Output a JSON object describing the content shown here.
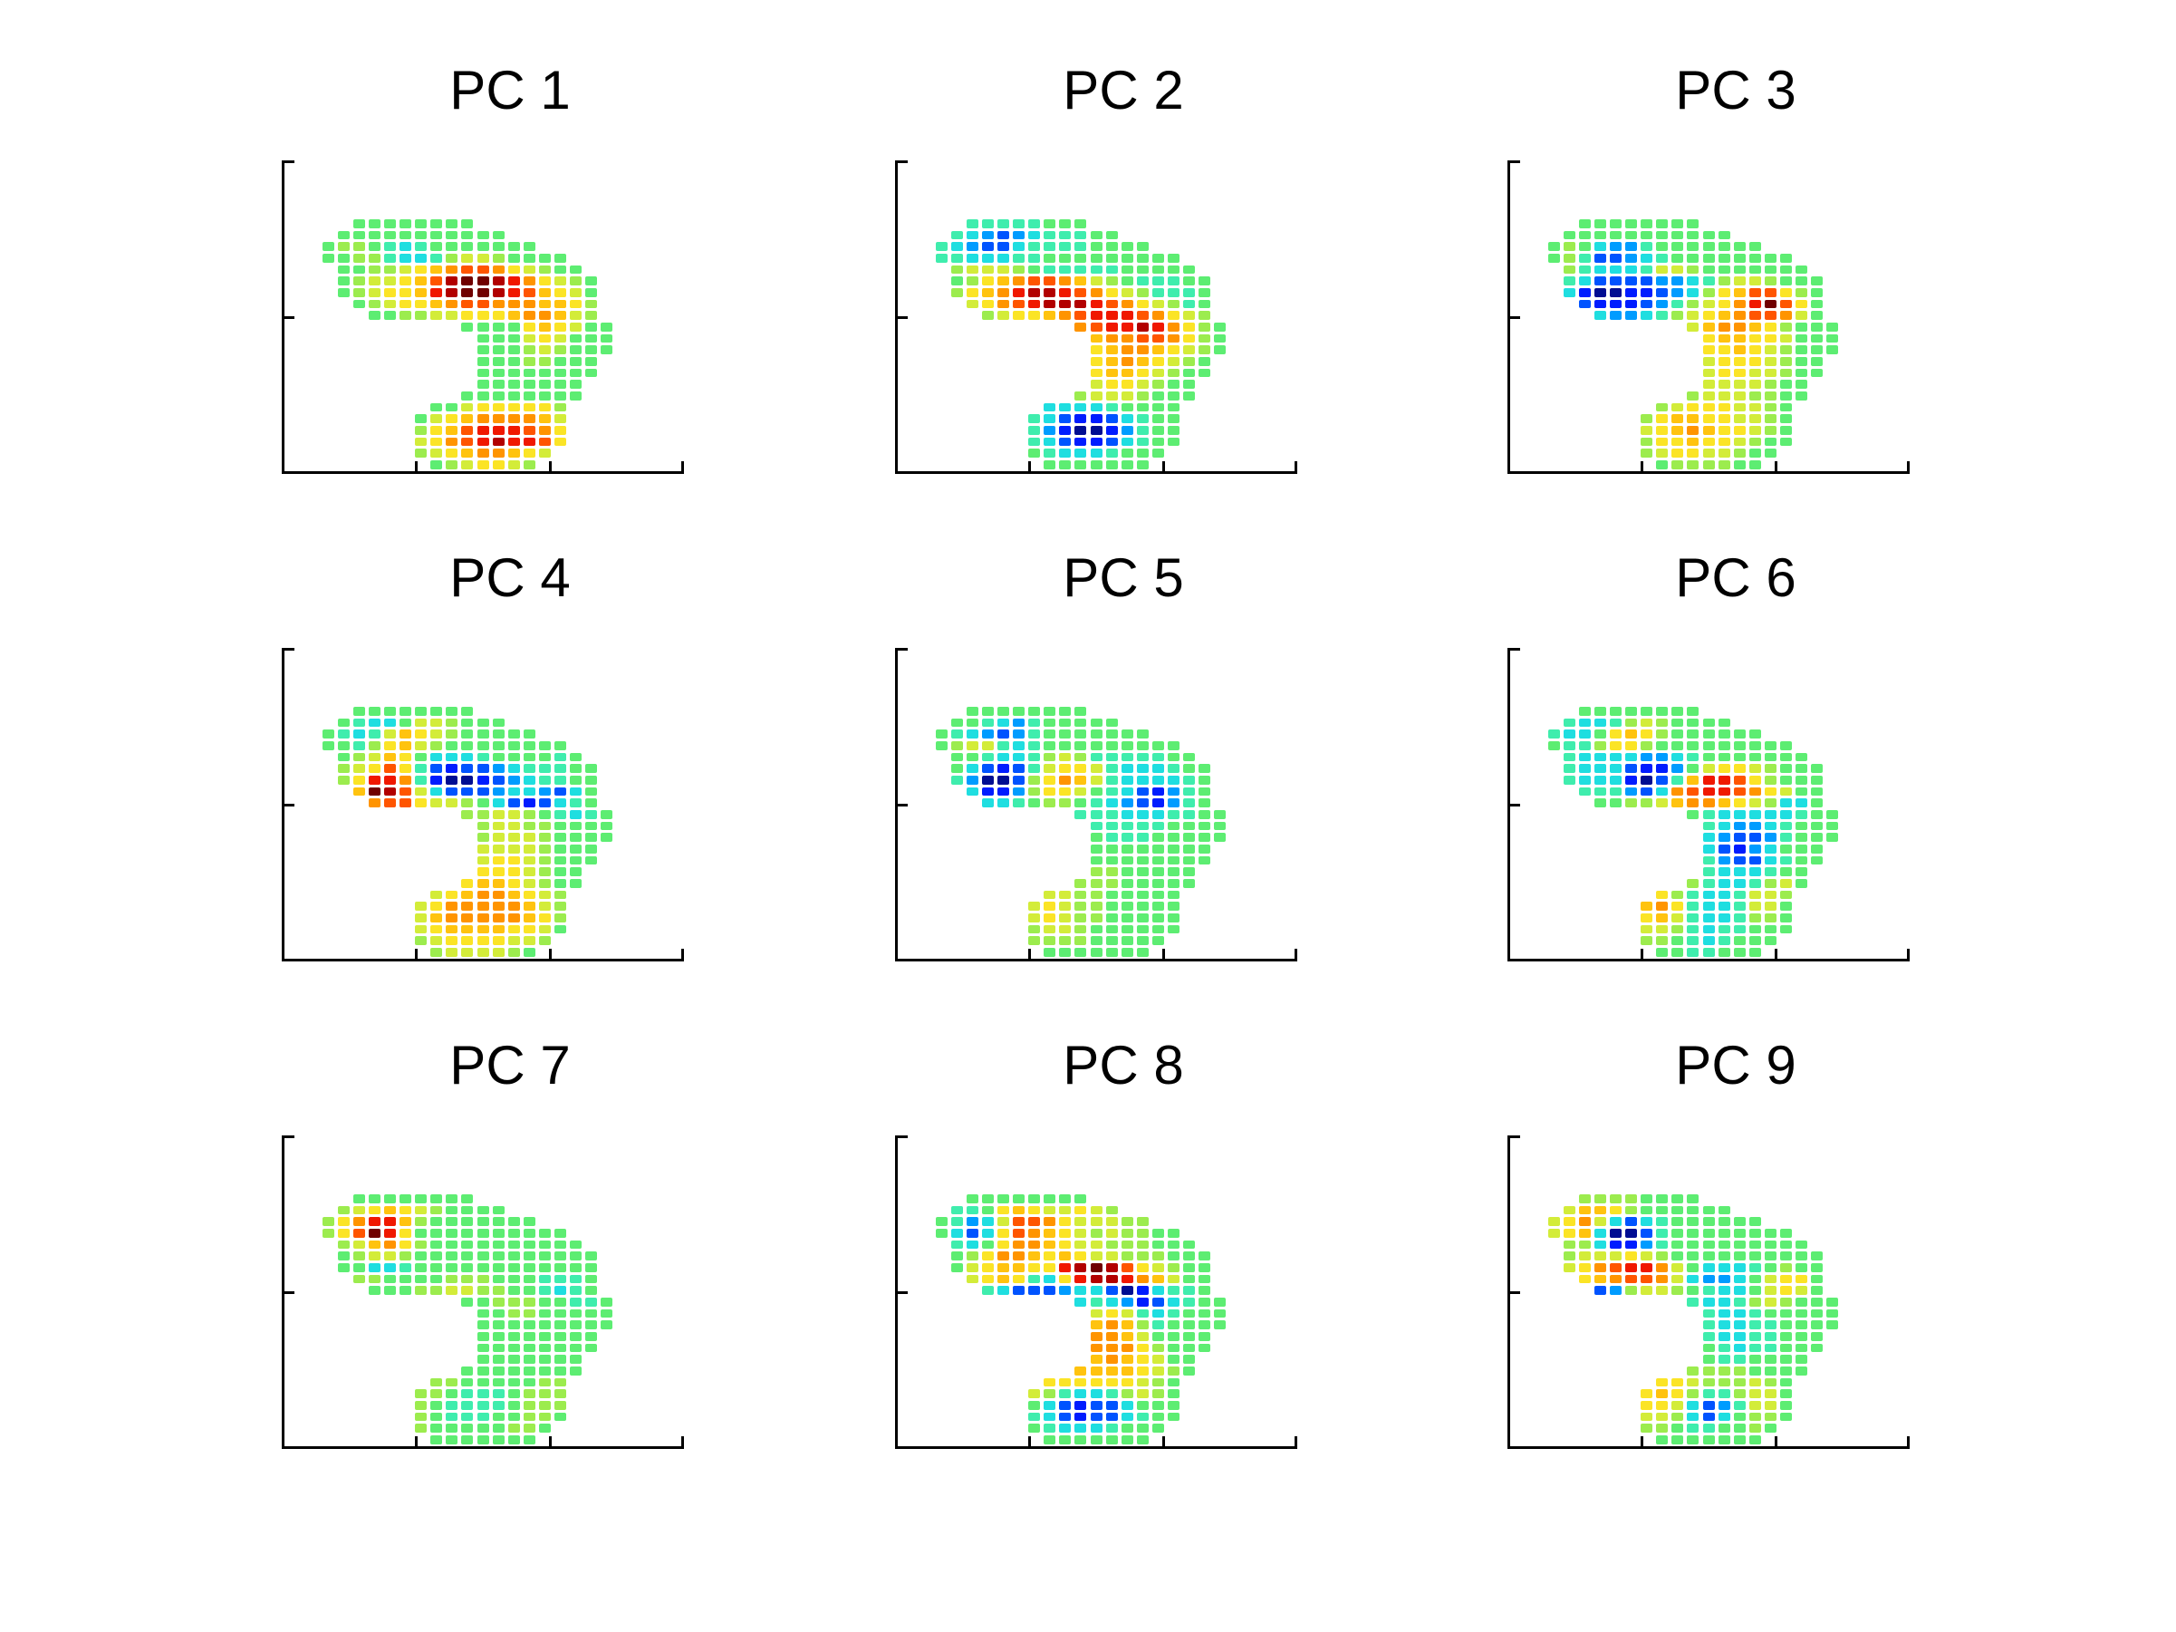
{
  "figure": {
    "background": "#ffffff",
    "style": "matlab-like figure, 3x3 grid of subplots, no axis tick labels, no axis titles"
  },
  "chart_data": {
    "type": "heatmap",
    "layout": "3x3 subplots",
    "title": "",
    "colormap": "jet",
    "axes": {
      "x_tick_positions_relative": [
        0.333,
        0.667,
        1.0
      ],
      "y_tick_positions_relative": [
        0.0,
        0.5
      ],
      "tick_labels_visible": false,
      "axis_labels_visible": false,
      "spines": [
        "left",
        "bottom"
      ]
    },
    "value_key": "each char is one sensor cell; '.'=no sensor; scale 0(strong negative, dark blue) .. 6(zero, green) .. f(strong positive, dark red)",
    "grid_size": {
      "rows": 22,
      "cols": 19
    },
    "palette": {
      "0": "#000D92",
      "1": "#001CFF",
      "2": "#0053FF",
      "3": "#009CFF",
      "4": "#1FDEE0",
      "5": "#3FEDAD",
      "6": "#5DED72",
      "7": "#9CEC4E",
      "8": "#D3EC39",
      "9": "#FBE426",
      "a": "#FFC30F",
      "b": "#FF9400",
      "c": "#FF5500",
      "d": "#F01800",
      "e": "#B20000",
      "f": "#700000"
    },
    "subplots": [
      {
        "title": "PC 1",
        "grid": [
          "..66666666.........",
          ".66666666666.......",
          "67765456666666.....",
          "6677544578876666...",
          ".667789abccb98766..",
          ".67889aceffedb9876.",
          ".67899adeffedca986.",
          "..67899abccbbbaa97.",
          "...667788999abba87.",
          ".........66669a9866",
          "..........666898666",
          "..........666787666",
          "..........66677666.",
          "..........66666666.",
          "..........6666666..",
          ".........66666666..",
          ".......668999997...",
          "......689abbbba8...",
          "......79acdddcb9...",
          "......89bcdeddc9...",
          "......789abba98....",
          ".......6789987....."
        ]
      },
      {
        "title": "PC 2",
        "grid": [
          "..55555666.........",
          ".54323455566.......",
          "54322455556666.....",
          "5544455666666666...",
          ".7888765555566666..",
          ".679abccba87655566.",
          ".79abdeedcb9875556.",
          "..89bcdeeedcb98756.",
          "...7899abcdddcb987.",
          ".........bcddedb976",
          "..........abbccb976",
          "..........9abba9876",
          "..........9aba9876.",
          "..........9aa98766.",
          "..........8998766..",
          ".........78887666..",
          ".......444456666...",
          "......5421124566...",
          "......5310013566...",
          "......5421124566...",
          "......654445666....",
          ".......6666666....."
        ]
      },
      {
        "title": "PC 3",
        "grid": [
          "..66666666.........",
          ".66666666666.......",
          "67643356666666.....",
          "6752234566666666...",
          ".7544458876666666..",
          ".54222233457887666.",
          ".41001123479acc976.",
          "..2111235789bdfc96.",
          "...43345789abccb86.",
          ".........8abba97666",
          "..........9aa998666",
          "..........99a987666",
          "..........89998766.",
          "..........89988766.",
          "..........8888766..",
          ".........78887766..",
          ".......789998876...",
          "......79aa998876...",
          "......89aba99876...",
          "......799a998766...",
          "......789988766....",
          ".......6777766....."
        ]
      },
      {
        "title": "PC 4",
        "grid": [
          "..66666666.........",
          ".65446887666.......",
          "65458a98766666.....",
          "66579a8766666666...",
          ".678a964445666656..",
          ".789c9521223455566.",
          ".79ddb510012345566.",
          "..afec842223443246.",
          "...bcc988764212456.",
          ".........7788765456",
          "..........788776666",
          "..........788876666",
          "..........88887666.",
          "..........89987666.",
          "..........9998766..",
          ".........9aa98766..",
          ".......89abba987...",
          "......89bbbbba87...",
          "......8abbbbba97...",
          "......89aaaa9986...",
          "......789999887....",
          ".......7888876....."
        ]
      },
      {
        "title": "PC 5",
        "grid": [
          "..66666666.........",
          ".66543566666.......",
          "65432356666666.....",
          "6788545666666666...",
          ".6654457875555566..",
          ".64212589985444566.",
          ".5300279ba85444456.",
          "..4113799865421356.",
          "...445677654321356.",
          ".........5554445566",
          "..........555556666",
          "..........655566666",
          "..........66666666.",
          "..........66666666.",
          "..........7766666..",
          ".........77766666..",
          ".......887766666...",
          "......8987766666...",
          "......8987766666...",
          "......7887666666...",
          "......777766666....",
          ".......6666666....."
        ]
      },
      {
        "title": "PC 6",
        "grid": [
          "..66666666.........",
          ".54457876666.......",
          "54469a97666666.....",
          "6557997666666666...",
          ".5444433456666666..",
          ".54442113689987666.",
          ".54441025addc97666.",
          "..555324bcddcb9866.",
          "...66778abba987446.",
          ".........6544444566",
          "..........543345666",
          "..........432235666",
          "..........42134666.",
          "..........53224566.",
          "..........5444566..",
          ".........75445786..",
          ".......975445887...",
          "......ab95445886...",
          "......9a85445776...",
          "......8875455666...",
          "......776545666....",
          ".......6655666....."
        ]
      },
      {
        "title": "PC 7",
        "grid": [
          "..66666666.........",
          ".789a9876666.......",
          "79bdda76666666.....",
          "79cfd96666666666...",
          ".78ab976666666666..",
          ".67887666666666666.",
          ".66445666666666666.",
          "..7766667776665556.",
          "...666778877665456.",
          ".........6677766556",
          "..........667766666",
          "..........666666666",
          "..........66666666.",
          "..........66666666.",
          "..........6666666..",
          ".........66666666..",
          ".......776666677...",
          "......7765556777...",
          "......7655556777...",
          "......7655566776...",
          "......766666776....",
          ".......6666666....."
        ]
      },
      {
        "title": "PC 8",
        "grid": [
          "..66666666.........",
          ".5569a988987.......",
          "65348ccb988877.....",
          "64249cba98787766...",
          ".5469bba988777666..",
          ".679bba9a988777666.",
          ".689aa99defec98766.",
          "..89a9549deedba866.",
          "...542223442014556.",
          ".........4543124566",
          "..........898545666",
          "..........aba756666",
          "..........bba86666.",
          "..........bbb97666.",
          "..........aba9866..",
          ".........aaaa9876..",
          ".......999999876...",
          "......8754457876...",
          "......6421224666...",
          "......5421224566...",
          "......654445666....",
          ".......6666666....."
        ]
      },
      {
        "title": "PC 9",
        "grid": [
          "..77776666.........",
          ".8aa97666666.......",
          "89b84245666666.....",
          "89a4002566666666...",
          ".7741135666666666..",
          ".78889876666666666.",
          ".89bcddb8644456766.",
          "..9abccb8433468996.",
          "...237887654468986.",
          ".........5445787666",
          "..........544566666",
          "..........544556666",
          "..........54455666.",
          "..........65455666.",
          "..........6556666..",
          ".........77776666..",
          ".......998777876...",
          "......9a97557886...",
          "......9984235886...",
          "......8874246776...",
          "......776556676....",
          ".......6666666....."
        ]
      }
    ]
  }
}
